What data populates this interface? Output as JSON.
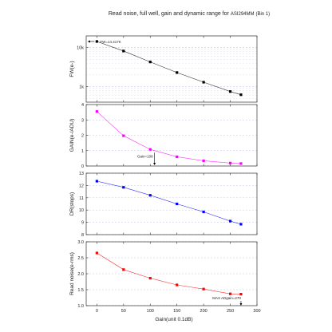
{
  "chart_data": {
    "title": "Read noise, full well, gain and dynamic range for",
    "title_model": "ASI294MM",
    "title_bin": "(Bin 1)",
    "xlabel": "Gain(unit 0.1dB)",
    "x_ticks": [
      "0",
      "50",
      "100",
      "150",
      "200",
      "250",
      "300"
    ],
    "xlim": [
      -20,
      300
    ],
    "panels": [
      {
        "type": "line",
        "scale": "log",
        "ylabel": "FW(e-)",
        "ylim": [
          400,
          20000
        ],
        "y_ticks": [
          {
            "v": 1000,
            "label": "1k"
          },
          {
            "v": 10000,
            "label": "10k"
          }
        ],
        "color": "#000000",
        "series": [
          {
            "x": [
              0,
              50,
              100,
              150,
              200,
              250,
              270
            ],
            "y": [
              14417,
              8200,
              4300,
              2300,
              1300,
              750,
              620
            ]
          }
        ],
        "annotation": {
          "text": "FW=14.417K",
          "x": 0,
          "y": 14417
        }
      },
      {
        "type": "line",
        "scale": "linear",
        "ylabel": "GAIN(e-/ADU)",
        "ylim": [
          0,
          4
        ],
        "y_ticks": [
          {
            "v": 0,
            "label": "0"
          },
          {
            "v": 1,
            "label": "1"
          },
          {
            "v": 2,
            "label": "2"
          },
          {
            "v": 3,
            "label": "3"
          },
          {
            "v": 4,
            "label": "4"
          }
        ],
        "color": "#ff00ff",
        "series": [
          {
            "x": [
              0,
              50,
              100,
              150,
              200,
              250,
              270
            ],
            "y": [
              3.55,
              1.97,
              1.08,
              0.6,
              0.34,
              0.19,
              0.16
            ]
          }
        ],
        "annotation": {
          "text": "Gain=108",
          "x": 108,
          "y": 0.55
        }
      },
      {
        "type": "line",
        "scale": "linear",
        "ylabel": "DR(stops)",
        "ylim": [
          8,
          13
        ],
        "y_ticks": [
          {
            "v": 8,
            "label": "8"
          },
          {
            "v": 9,
            "label": "9"
          },
          {
            "v": 10,
            "label": "10"
          },
          {
            "v": 11,
            "label": "11"
          },
          {
            "v": 12,
            "label": "12"
          },
          {
            "v": 13,
            "label": "13"
          }
        ],
        "color": "#0000ff",
        "series": [
          {
            "x": [
              0,
              50,
              100,
              150,
              200,
              250,
              270
            ],
            "y": [
              12.35,
              11.85,
              11.2,
              10.5,
              9.85,
              9.1,
              8.85
            ]
          }
        ]
      },
      {
        "type": "line",
        "scale": "linear",
        "ylabel": "Read noise(e-rms)",
        "ylim": [
          1,
          3
        ],
        "y_ticks": [
          {
            "v": 1.0,
            "label": "1.0"
          },
          {
            "v": 1.5,
            "label": "1.5"
          },
          {
            "v": 2.0,
            "label": "2.0"
          },
          {
            "v": 2.5,
            "label": "2.5"
          },
          {
            "v": 3.0,
            "label": "3.0"
          }
        ],
        "color": "#ff0000",
        "series": [
          {
            "x": [
              0,
              50,
              100,
              150,
              200,
              250,
              270
            ],
            "y": [
              2.65,
              2.13,
              1.86,
              1.65,
              1.52,
              1.37,
              1.36
            ]
          }
        ],
        "annotation": {
          "text": "MAX ADgain=270",
          "x": 270,
          "y": 1.25
        }
      }
    ]
  }
}
